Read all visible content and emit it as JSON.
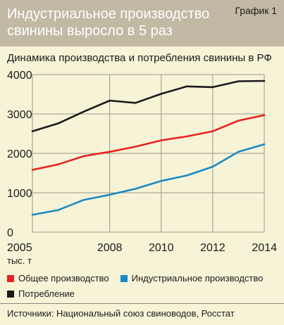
{
  "header": {
    "headline": "Индустриальное производство свинины выросло в 5 раз",
    "graph_label": "График 1"
  },
  "colors": {
    "header_bg": "#c2b9a4",
    "page_bg": "#f7f3d7"
  },
  "chart_data": {
    "type": "line",
    "title": "Динамика производства и потребления свинины в РФ",
    "unit_label": "тыс. т",
    "xlim": [
      2005,
      2014
    ],
    "ylim": [
      0,
      4000
    ],
    "x_ticks": [
      "2005",
      "2008",
      "2010",
      "2012",
      "2014"
    ],
    "y_ticks": [
      "0",
      "1000",
      "2000",
      "3000",
      "4000"
    ],
    "grid": true,
    "series": [
      {
        "name": "Общее производство",
        "color": "#e52421",
        "x": [
          2005,
          2006,
          2007,
          2008,
          2009,
          2010,
          2011,
          2012,
          2013,
          2014
        ],
        "values": [
          1580,
          1720,
          1930,
          2040,
          2170,
          2330,
          2430,
          2560,
          2830,
          2970
        ]
      },
      {
        "name": "Индустриальное производство",
        "color": "#1b8ac4",
        "x": [
          2005,
          2006,
          2007,
          2008,
          2009,
          2010,
          2011,
          2012,
          2013,
          2014
        ],
        "values": [
          440,
          560,
          820,
          950,
          1100,
          1300,
          1440,
          1660,
          2040,
          2230
        ]
      },
      {
        "name": "Потребление",
        "color": "#1a1a1a",
        "x": [
          2005,
          2006,
          2007,
          2008,
          2009,
          2010,
          2011,
          2012,
          2013,
          2014
        ],
        "values": [
          2560,
          2760,
          3060,
          3340,
          3280,
          3510,
          3700,
          3680,
          3830,
          3840
        ]
      }
    ]
  },
  "sources": "Источники: Национальный союз свиноводов, Росстат"
}
